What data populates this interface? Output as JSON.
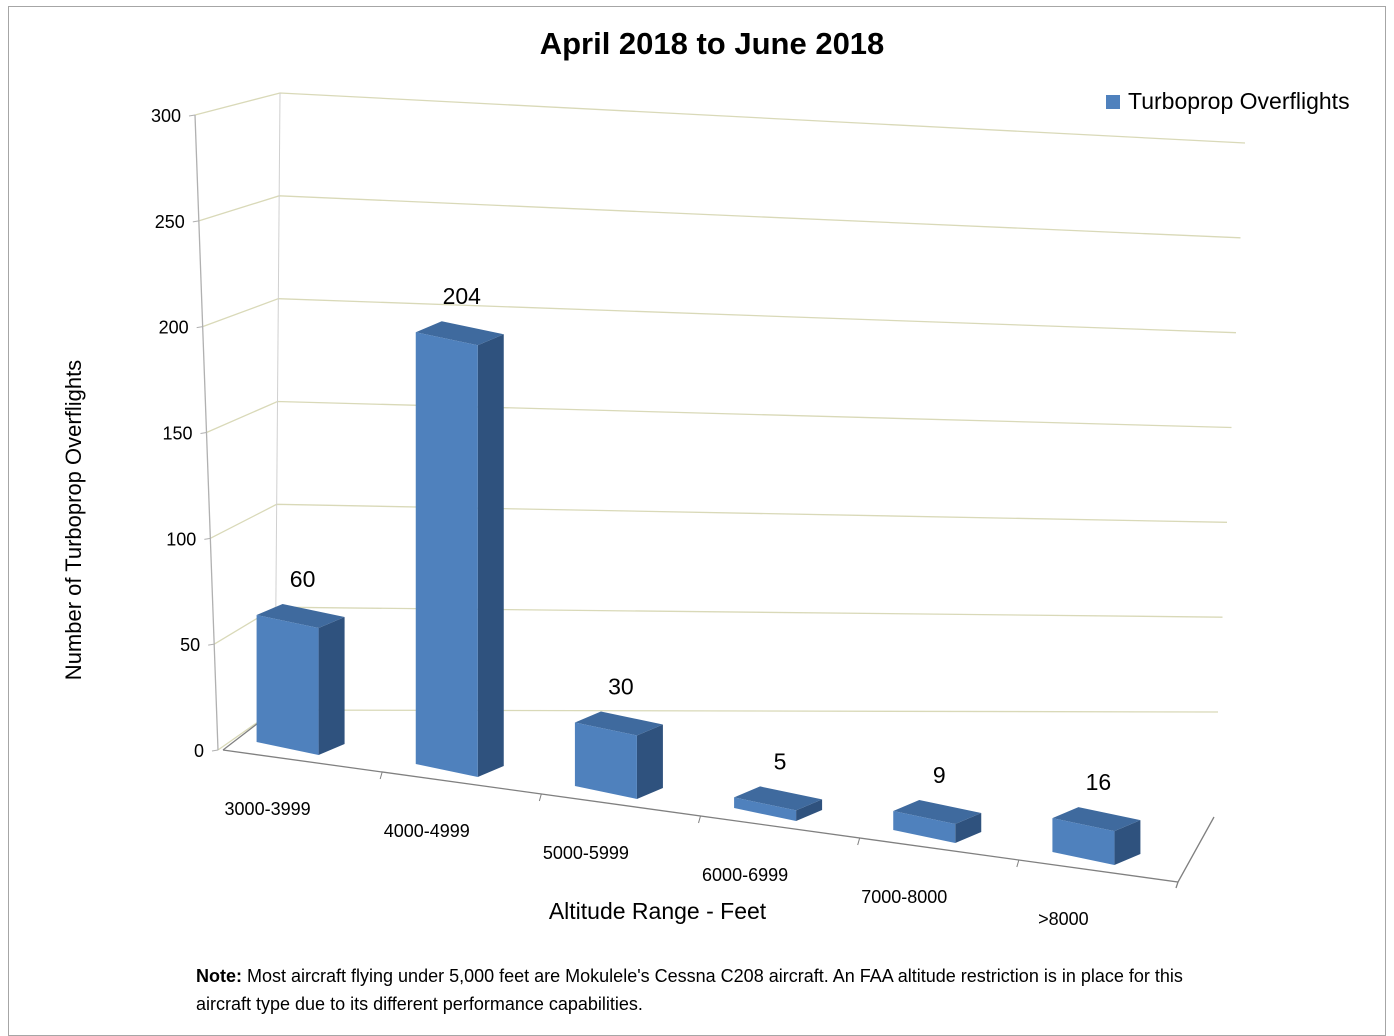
{
  "chart_data": {
    "type": "bar",
    "title": "April 2018 to June 2018",
    "xlabel": "Altitude Range - Feet",
    "ylabel": "Number of Turboprop Overflights",
    "categories": [
      "3000-3999",
      "4000-4999",
      "5000-5999",
      "6000-6999",
      "7000-8000",
      ">8000"
    ],
    "series": [
      {
        "name": "Turboprop Overflights",
        "values": [
          60,
          204,
          30,
          5,
          9,
          16
        ]
      }
    ],
    "ylim": [
      0,
      300
    ],
    "yticks": [
      0,
      50,
      100,
      150,
      200,
      250,
      300
    ],
    "grid": true,
    "legend_position": "top-right",
    "style": "3d-column",
    "colors": {
      "bar_front": "#4f81bd",
      "bar_top": "#3f6a9e",
      "bar_side": "#2f527e",
      "grid": "#d9d9b8"
    }
  },
  "note": {
    "label": "Note:",
    "text": " Most aircraft flying under 5,000 feet are Mokulele's Cessna C208 aircraft. An FAA altitude restriction is in place for this aircraft type due to its different performance capabilities."
  }
}
